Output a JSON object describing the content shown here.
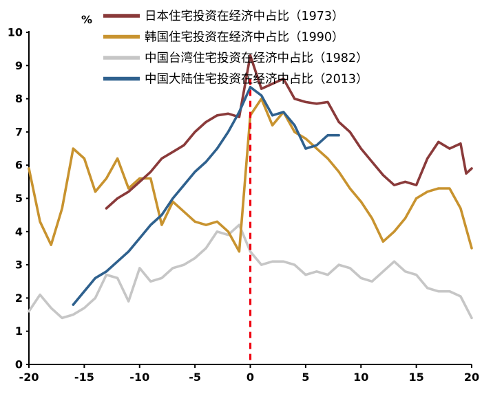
{
  "chart_data": {
    "type": "line",
    "unit_label": "%",
    "xlim": [
      -20,
      20
    ],
    "ylim": [
      0,
      10
    ],
    "x_ticks": [
      -20,
      -15,
      -10,
      -5,
      0,
      5,
      10,
      15,
      20
    ],
    "y_ticks": [
      0,
      1,
      2,
      3,
      4,
      5,
      6,
      7,
      8,
      9,
      10
    ],
    "grid": false,
    "legend_position": "top-left-inside",
    "axis_color": "#000000",
    "vline": {
      "x": 0,
      "y_top": 8.6,
      "color": "#ee0011",
      "style": "dashed"
    },
    "series": [
      {
        "name": "日本住宅投资在经济中占比（1973）",
        "color": "#8a3a3a",
        "points": [
          [
            -13,
            4.7
          ],
          [
            -12,
            5.0
          ],
          [
            -11,
            5.2
          ],
          [
            -10,
            5.5
          ],
          [
            -9,
            5.8
          ],
          [
            -8,
            6.2
          ],
          [
            -7,
            6.4
          ],
          [
            -6,
            6.6
          ],
          [
            -5,
            7.0
          ],
          [
            -4,
            7.3
          ],
          [
            -3,
            7.5
          ],
          [
            -2,
            7.55
          ],
          [
            -1,
            7.45
          ],
          [
            0,
            9.3
          ],
          [
            1,
            8.3
          ],
          [
            2,
            8.45
          ],
          [
            3,
            8.6
          ],
          [
            4,
            8.0
          ],
          [
            5,
            7.9
          ],
          [
            6,
            7.85
          ],
          [
            7,
            7.9
          ],
          [
            8,
            7.3
          ],
          [
            9,
            7.0
          ],
          [
            10,
            6.5
          ],
          [
            11,
            6.1
          ],
          [
            12,
            5.7
          ],
          [
            13,
            5.4
          ],
          [
            14,
            5.5
          ],
          [
            15,
            5.4
          ],
          [
            16,
            6.2
          ],
          [
            17,
            6.7
          ],
          [
            18,
            6.5
          ],
          [
            19,
            6.65
          ],
          [
            19.5,
            5.75
          ],
          [
            20,
            5.9
          ]
        ]
      },
      {
        "name": "韩国住宅投资在经济中占比（1990）",
        "color": "#c8932f",
        "points": [
          [
            -20,
            5.9
          ],
          [
            -19,
            4.3
          ],
          [
            -18,
            3.6
          ],
          [
            -17,
            4.7
          ],
          [
            -16,
            6.5
          ],
          [
            -15,
            6.2
          ],
          [
            -14,
            5.2
          ],
          [
            -13,
            5.6
          ],
          [
            -12,
            6.2
          ],
          [
            -11,
            5.3
          ],
          [
            -10,
            5.6
          ],
          [
            -9,
            5.6
          ],
          [
            -8,
            4.2
          ],
          [
            -7,
            4.9
          ],
          [
            -6,
            4.6
          ],
          [
            -5,
            4.3
          ],
          [
            -4,
            4.2
          ],
          [
            -3,
            4.3
          ],
          [
            -2,
            4.0
          ],
          [
            -1,
            3.4
          ],
          [
            0,
            7.5
          ],
          [
            1,
            8.0
          ],
          [
            2,
            7.2
          ],
          [
            3,
            7.6
          ],
          [
            4,
            7.0
          ],
          [
            5,
            6.8
          ],
          [
            6,
            6.5
          ],
          [
            7,
            6.2
          ],
          [
            8,
            5.8
          ],
          [
            9,
            5.3
          ],
          [
            10,
            4.9
          ],
          [
            11,
            4.4
          ],
          [
            12,
            3.7
          ],
          [
            13,
            4.0
          ],
          [
            14,
            4.4
          ],
          [
            15,
            5.0
          ],
          [
            16,
            5.2
          ],
          [
            17,
            5.3
          ],
          [
            18,
            5.3
          ],
          [
            19,
            4.7
          ],
          [
            20,
            3.5
          ]
        ]
      },
      {
        "name": "中国台湾住宅投资在经济中占比（1982）",
        "color": "#c6c6c6",
        "points": [
          [
            -20,
            1.6
          ],
          [
            -19,
            2.1
          ],
          [
            -18,
            1.7
          ],
          [
            -17,
            1.4
          ],
          [
            -16,
            1.5
          ],
          [
            -15,
            1.7
          ],
          [
            -14,
            2.0
          ],
          [
            -13,
            2.7
          ],
          [
            -12,
            2.6
          ],
          [
            -11,
            1.9
          ],
          [
            -10,
            2.9
          ],
          [
            -9,
            2.5
          ],
          [
            -8,
            2.6
          ],
          [
            -7,
            2.9
          ],
          [
            -6,
            3.0
          ],
          [
            -5,
            3.2
          ],
          [
            -4,
            3.5
          ],
          [
            -3,
            4.0
          ],
          [
            -2,
            3.9
          ],
          [
            -1,
            4.2
          ],
          [
            0,
            3.4
          ],
          [
            1,
            3.0
          ],
          [
            2,
            3.1
          ],
          [
            3,
            3.1
          ],
          [
            4,
            3.0
          ],
          [
            5,
            2.7
          ],
          [
            6,
            2.8
          ],
          [
            7,
            2.7
          ],
          [
            8,
            3.0
          ],
          [
            9,
            2.9
          ],
          [
            10,
            2.6
          ],
          [
            11,
            2.5
          ],
          [
            12,
            2.8
          ],
          [
            13,
            3.1
          ],
          [
            14,
            2.8
          ],
          [
            15,
            2.7
          ],
          [
            16,
            2.3
          ],
          [
            17,
            2.2
          ],
          [
            18,
            2.2
          ],
          [
            19,
            2.05
          ],
          [
            20,
            1.4
          ]
        ]
      },
      {
        "name": "中国大陆住宅投资在经济中占比（2013）",
        "color": "#2f618e",
        "points": [
          [
            -16,
            1.8
          ],
          [
            -15,
            2.2
          ],
          [
            -14,
            2.6
          ],
          [
            -13,
            2.8
          ],
          [
            -12,
            3.1
          ],
          [
            -11,
            3.4
          ],
          [
            -10,
            3.8
          ],
          [
            -9,
            4.2
          ],
          [
            -8,
            4.5
          ],
          [
            -7,
            5.0
          ],
          [
            -6,
            5.4
          ],
          [
            -5,
            5.8
          ],
          [
            -4,
            6.1
          ],
          [
            -3,
            6.5
          ],
          [
            -2,
            7.0
          ],
          [
            -1,
            7.6
          ],
          [
            0,
            8.35
          ],
          [
            1,
            8.1
          ],
          [
            2,
            7.5
          ],
          [
            3,
            7.6
          ],
          [
            4,
            7.2
          ],
          [
            5,
            6.5
          ],
          [
            6,
            6.6
          ],
          [
            7,
            6.9
          ],
          [
            8,
            6.9
          ]
        ]
      }
    ]
  }
}
